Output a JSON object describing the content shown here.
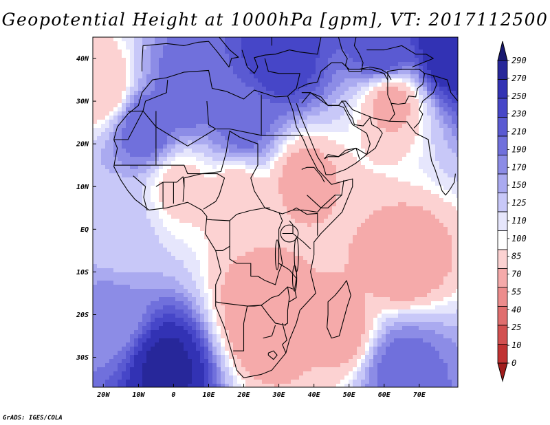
{
  "title": "Geopotential Height at 1000hPa [gpm], VT: 2017112500",
  "footer": "GrADS: IGES/COLA",
  "map": {
    "lon_range": [
      -23,
      81
    ],
    "lat_range": [
      -37,
      45
    ],
    "lon_ticks": [
      {
        "value": -20,
        "label": "20W"
      },
      {
        "value": -10,
        "label": "10W"
      },
      {
        "value": 0,
        "label": "0"
      },
      {
        "value": 10,
        "label": "10E"
      },
      {
        "value": 20,
        "label": "20E"
      },
      {
        "value": 30,
        "label": "30E"
      },
      {
        "value": 40,
        "label": "40E"
      },
      {
        "value": 50,
        "label": "50E"
      },
      {
        "value": 60,
        "label": "60E"
      },
      {
        "value": 70,
        "label": "70E"
      }
    ],
    "lat_ticks": [
      {
        "value": 40,
        "label": "40N"
      },
      {
        "value": 30,
        "label": "30N"
      },
      {
        "value": 20,
        "label": "20N"
      },
      {
        "value": 10,
        "label": "10N"
      },
      {
        "value": 0,
        "label": "EQ"
      },
      {
        "value": -10,
        "label": "10S"
      },
      {
        "value": -20,
        "label": "20S"
      },
      {
        "value": -30,
        "label": "30S"
      }
    ]
  },
  "colorbar": {
    "levels": [
      "290",
      "270",
      "250",
      "230",
      "210",
      "190",
      "170",
      "150",
      "125",
      "110",
      "100",
      "85",
      "70",
      "55",
      "40",
      "25",
      "10",
      "0"
    ],
    "colors": [
      "#191970",
      "#27279a",
      "#3232b4",
      "#4646c8",
      "#5a5ad2",
      "#7070dc",
      "#8c8ce6",
      "#aaaaf0",
      "#c8c8f8",
      "#e6e6fc",
      "#ffffff",
      "#fcd2d2",
      "#f5aaaa",
      "#ec8c8c",
      "#e06e6e",
      "#d25050",
      "#c03232",
      "#a01c1c"
    ]
  },
  "field_centers": [
    {
      "lon": -20,
      "lat": 33,
      "value": 85
    },
    {
      "lon": -8,
      "lat": 24,
      "value": 205
    },
    {
      "lon": 5,
      "lat": 33,
      "value": 205
    },
    {
      "lon": 20,
      "lat": 25,
      "value": 200
    },
    {
      "lon": 30,
      "lat": 40,
      "value": 245
    },
    {
      "lon": 60,
      "lat": 42,
      "value": 230
    },
    {
      "lon": 78,
      "lat": 42,
      "value": 270
    },
    {
      "lon": 2,
      "lat": 10,
      "value": 95
    },
    {
      "lon": 18,
      "lat": 8,
      "value": 90
    },
    {
      "lon": 37,
      "lat": 12,
      "value": 80
    },
    {
      "lon": 24,
      "lat": -15,
      "value": 80
    },
    {
      "lon": 25,
      "lat": -22,
      "value": 70
    },
    {
      "lon": 65,
      "lat": -8,
      "value": 75
    },
    {
      "lon": 48,
      "lat": -24,
      "value": 80
    },
    {
      "lon": 62,
      "lat": 30,
      "value": 80
    },
    {
      "lon": -2,
      "lat": -32,
      "value": 275
    },
    {
      "lon": -18,
      "lat": -20,
      "value": 175
    },
    {
      "lon": 65,
      "lat": -33,
      "value": 200
    },
    {
      "lon": -15,
      "lat": 0,
      "value": 130
    }
  ]
}
